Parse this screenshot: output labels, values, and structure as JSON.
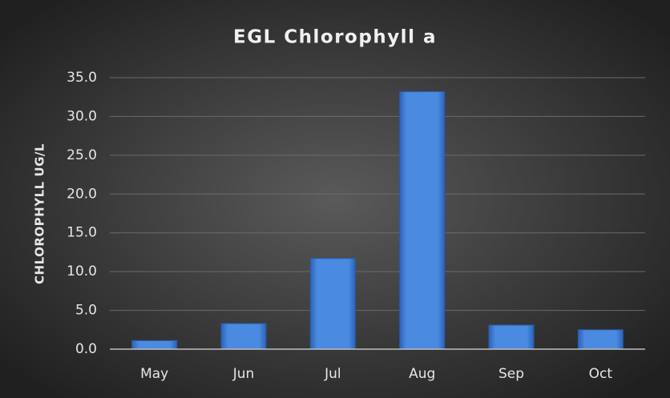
{
  "chart_data": {
    "type": "bar",
    "title": "EGL Chlorophyll a",
    "y_label": "CHLOROPHYLL UG/L",
    "categories": [
      "May",
      "Jun",
      "Jul",
      "Aug",
      "Sep",
      "Oct"
    ],
    "values": [
      1.1,
      3.3,
      11.7,
      33.2,
      3.1,
      2.5
    ],
    "color": "#4a8ae0",
    "ylim": [
      0,
      35
    ],
    "yticks": [
      {
        "value": 0,
        "label": "0.0"
      },
      {
        "value": 5,
        "label": "5.0"
      },
      {
        "value": 10,
        "label": "10.0"
      },
      {
        "value": 15,
        "label": "15.0"
      },
      {
        "value": 20,
        "label": "20.0"
      },
      {
        "value": 25,
        "label": "25.0"
      },
      {
        "value": 30,
        "label": "30.0"
      },
      {
        "value": 35,
        "label": "35.0"
      }
    ],
    "grid": true
  }
}
